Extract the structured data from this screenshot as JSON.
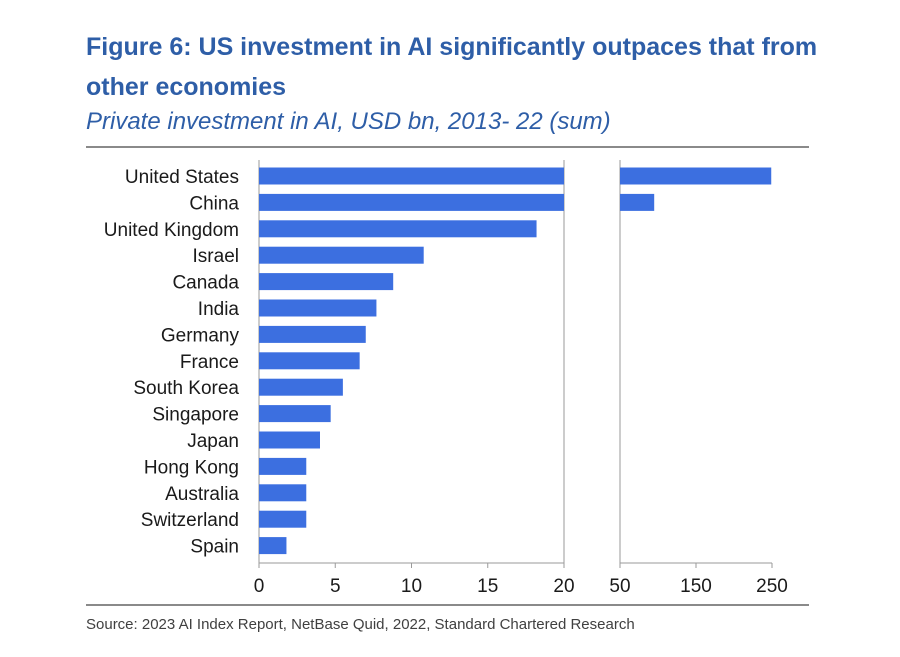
{
  "title": "Figure 6: US investment in AI significantly outpaces that from other economies",
  "subtitle": "Private investment in AI, USD bn, 2013- 22 (sum)",
  "source": "Source: 2023 AI Index Report, NetBase Quid, 2022, Standard Chartered Research",
  "colors": {
    "bar": "#3c6fe0",
    "title": "#2e5ea7",
    "axis": "#9a9a9a"
  },
  "chart_data": {
    "type": "bar",
    "orientation": "horizontal",
    "title": "Figure 6: US investment in AI significantly outpaces that from other economies",
    "subtitle": "Private investment in AI, USD bn, 2013- 22 (sum)",
    "xlabel": "",
    "ylabel": "",
    "broken_axis": true,
    "segments": [
      {
        "range": [
          0,
          20
        ],
        "ticks": [
          0,
          5,
          10,
          15,
          20
        ]
      },
      {
        "range": [
          50,
          250
        ],
        "ticks": [
          50,
          150,
          250
        ]
      }
    ],
    "categories": [
      "United States",
      "China",
      "United Kingdom",
      "Israel",
      "Canada",
      "India",
      "Germany",
      "France",
      "South Korea",
      "Singapore",
      "Japan",
      "Hong Kong",
      "Australia",
      "Switzerland",
      "Spain"
    ],
    "values": [
      249,
      95,
      18.2,
      10.8,
      8.8,
      7.7,
      7.0,
      6.6,
      5.5,
      4.7,
      4.0,
      3.1,
      3.1,
      3.1,
      1.8
    ],
    "legend": "none",
    "grid": false
  }
}
